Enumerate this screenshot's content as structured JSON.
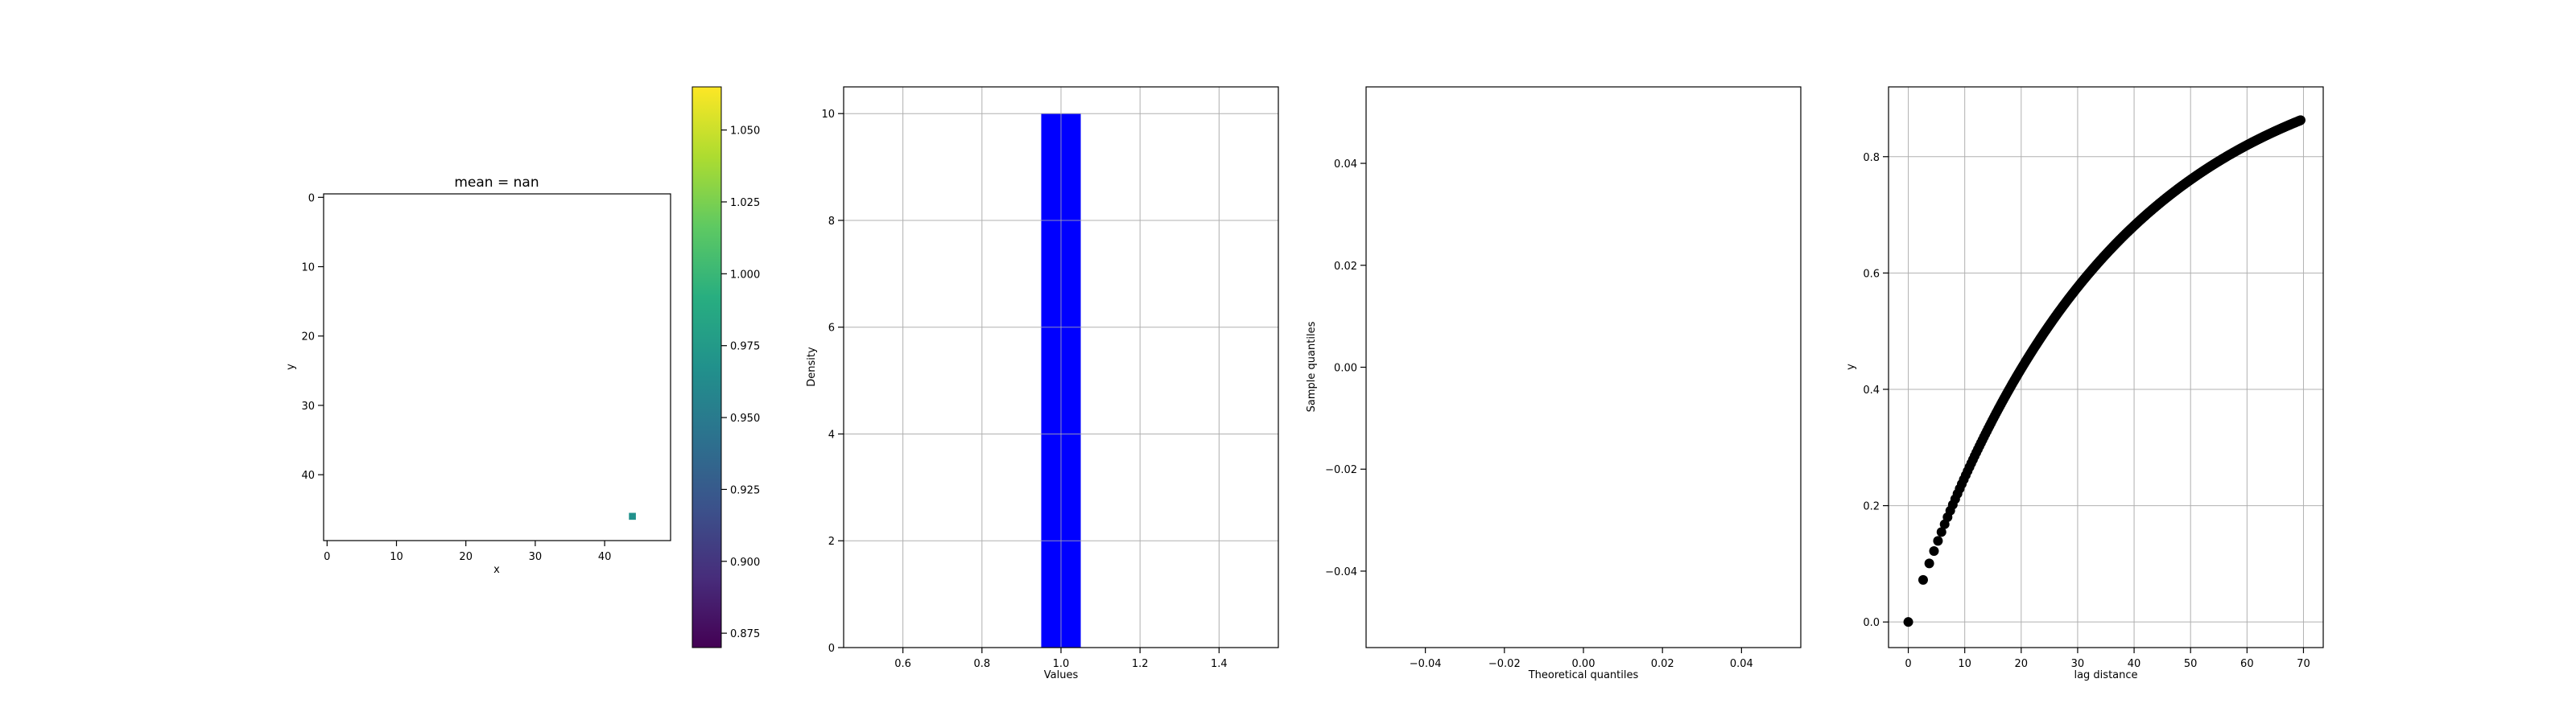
{
  "chart_data": [
    {
      "type": "heatmap",
      "title": "mean = nan",
      "xlabel": "x",
      "ylabel": "y",
      "xlim": [
        -0.5,
        49.5
      ],
      "ylim": [
        49.5,
        -0.5
      ],
      "x_ticks": [
        "0",
        "10",
        "20",
        "30",
        "40"
      ],
      "y_ticks": [
        "0",
        "10",
        "20",
        "30",
        "40"
      ],
      "cells": [
        {
          "x": 44,
          "y": 46,
          "value": 0.97
        }
      ],
      "colormap": "viridis",
      "colorbar": {
        "min": 0.87,
        "max": 1.065,
        "ticks": [
          "0.875",
          "0.900",
          "0.925",
          "0.950",
          "0.975",
          "1.000",
          "1.025",
          "1.050"
        ]
      }
    },
    {
      "type": "bar",
      "xlabel": "Values",
      "ylabel": "Density",
      "xlim": [
        0.45,
        1.55
      ],
      "ylim": [
        0,
        10.5
      ],
      "x_ticks": [
        "0.6",
        "0.8",
        "1.0",
        "1.2",
        "1.4"
      ],
      "y_ticks": [
        "0",
        "2",
        "4",
        "6",
        "8",
        "10"
      ],
      "bars": [
        {
          "x0": 0.95,
          "x1": 1.05,
          "value": 10
        }
      ],
      "grid": true,
      "color": "#0000ff"
    },
    {
      "type": "scatter",
      "xlabel": "Theoretical quantiles",
      "ylabel": "Sample quantiles",
      "xlim": [
        -0.055,
        0.055
      ],
      "ylim": [
        -0.055,
        0.055
      ],
      "x_ticks": [
        "−0.04",
        "−0.02",
        "0.00",
        "0.02",
        "0.04"
      ],
      "y_ticks": [
        "−0.04",
        "−0.02",
        "0.00",
        "0.02",
        "0.04"
      ],
      "points": [],
      "grid": false
    },
    {
      "type": "scatter",
      "xlabel": "lag distance",
      "ylabel": "y",
      "xlim": [
        -3.5,
        73.5
      ],
      "ylim": [
        -0.044,
        0.92
      ],
      "x_ticks": [
        "0",
        "10",
        "20",
        "30",
        "40",
        "50",
        "60",
        "70"
      ],
      "y_ticks": [
        "0.0",
        "0.2",
        "0.4",
        "0.6",
        "0.8"
      ],
      "function": "y = 1 - exp(-x/35)",
      "x_range": [
        0,
        69.5
      ],
      "grid": true,
      "color": "#000000"
    }
  ]
}
